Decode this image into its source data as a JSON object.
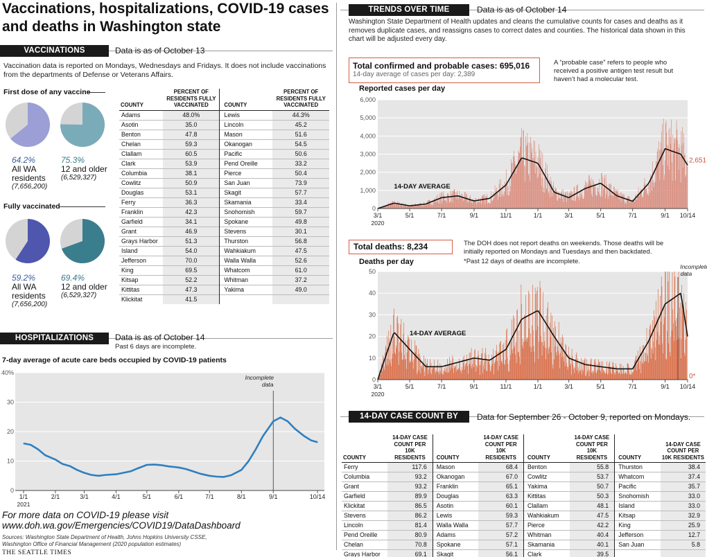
{
  "title": "Vaccinations, hospitalizations, COVID-19 cases and deaths in Washington state",
  "vaccinations": {
    "header": "VACCINATIONS",
    "asof": "Data is as of October 13",
    "note": "Vaccination data is reported on Mondays, Wednesdays and Fridays. It does not include vaccinations from the departments of Defense or Veterans Affairs.",
    "first_dose_label": "First dose of any vaccine",
    "fully_label": "Fully vaccinated",
    "first_dose": [
      {
        "pct": "64.2%",
        "value": 64.2,
        "group": "All WA residents",
        "pop": "(7,656,200)",
        "color": "#9b9fd6"
      },
      {
        "pct": "75.3%",
        "value": 75.3,
        "group": "12 and older",
        "pop": "(6,529,327)",
        "color": "#7aabb8"
      }
    ],
    "fully": [
      {
        "pct": "59.2%",
        "value": 59.2,
        "group": "All WA residents",
        "pop": "(7,656,200)",
        "color": "#4f56ad"
      },
      {
        "pct": "69.4%",
        "value": 69.4,
        "group": "12 and older",
        "pop": "(6,529,327)",
        "color": "#3a7d8d"
      }
    ],
    "table": {
      "col_county": "COUNTY",
      "col_pct": "PERCENT OF RESIDENTS FULLY VACCINATED",
      "left": [
        [
          "Adams",
          "48.0%"
        ],
        [
          "Asotin",
          "35.0"
        ],
        [
          "Benton",
          "47.8"
        ],
        [
          "Chelan",
          "59.3"
        ],
        [
          "Clallam",
          "60.5"
        ],
        [
          "Clark",
          "53.9"
        ],
        [
          "Columbia",
          "38.1"
        ],
        [
          "Cowlitz",
          "50.9"
        ],
        [
          "Douglas",
          "53.1"
        ],
        [
          "Ferry",
          "36.3"
        ],
        [
          "Franklin",
          "42.3"
        ],
        [
          "Garfield",
          "34.1"
        ],
        [
          "Grant",
          "46.9"
        ],
        [
          "Grays Harbor",
          "51.3"
        ],
        [
          "Island",
          "54.0"
        ],
        [
          "Jefferson",
          "70.0"
        ],
        [
          "King",
          "69.5"
        ],
        [
          "Kitsap",
          "52.2"
        ],
        [
          "Kittitas",
          "47.3"
        ],
        [
          "Klickitat",
          "41.5"
        ]
      ],
      "right": [
        [
          "Lewis",
          "44.3%"
        ],
        [
          "Lincoln",
          "45.2"
        ],
        [
          "Mason",
          "51.6"
        ],
        [
          "Okanogan",
          "54.5"
        ],
        [
          "Pacific",
          "50.6"
        ],
        [
          "Pend Oreille",
          "33.2"
        ],
        [
          "Pierce",
          "50.4"
        ],
        [
          "San Juan",
          "73.9"
        ],
        [
          "Skagit",
          "57.7"
        ],
        [
          "Skamania",
          "33.4"
        ],
        [
          "Snohomish",
          "59.7"
        ],
        [
          "Spokane",
          "49.8"
        ],
        [
          "Stevens",
          "30.1"
        ],
        [
          "Thurston",
          "56.8"
        ],
        [
          "Wahkiakum",
          "47.5"
        ],
        [
          "Walla Walla",
          "52.6"
        ],
        [
          "Whatcom",
          "61.0"
        ],
        [
          "Whitman",
          "37.2"
        ],
        [
          "Yakima",
          "49.0"
        ],
        [
          "",
          ""
        ]
      ]
    }
  },
  "hospitalizations": {
    "header": "HOSPITALIZATIONS",
    "asof": "Data is as of October 14",
    "note": "Past 6 days are incomplete.",
    "chart_title": "7-day average of acute care beds occupied by COVID-19 patients",
    "incomplete": "Incomplete data"
  },
  "footer": {
    "more_data": "For more data on COVID-19 please visit",
    "url": "www.doh.wa.gov/Emergencies/COVID19/DataDashboard",
    "sources": "Sources: Washington State Department of Health, Johns Hopkins University CSSE, Washington Office of Financial Management (2020 population estimates)",
    "credit": "THE SEATTLE TIMES"
  },
  "trends": {
    "header": "TRENDS OVER TIME",
    "asof": "Data is as of October 14",
    "note": "Washington State Department of Health updates and cleans the cumulative counts for cases and deaths as it removes duplicate cases, and reassigns cases to correct dates and counties. The historical data shown in this chart will be adjusted every day.",
    "cases_total": "Total confirmed and probable cases: 695,016",
    "cases_avg": "14-day average of cases per day: 2,389",
    "probable_note": "A “probable case” refers to people who received a positive antigen test result but haven’t had a molecular test.",
    "cases_title": "Reported cases per day",
    "cases_last": "2,651",
    "avg_label": "14-DAY AVERAGE",
    "deaths_total": "Total deaths: 8,234",
    "deaths_note": "The DOH does not report deaths on weekends. Those deaths will be initially reported on Mondays and Tuesdays and then backdated.",
    "deaths_note2": "*Past 12 days of deaths are incomplete.",
    "deaths_title": "Deaths per day",
    "deaths_last": "0*",
    "incomplete": "Incomplete data"
  },
  "county14": {
    "header": "14-DAY CASE COUNT BY COUNTY",
    "asof": "Data for September 26 - October 9, reported on Mondays.",
    "col_county": "COUNTY",
    "col_count": "14-DAY CASE COUNT PER 10K RESIDENTS",
    "columns": [
      [
        [
          "Ferry",
          "117.6"
        ],
        [
          "Columbia",
          "93.2"
        ],
        [
          "Grant",
          "93.2"
        ],
        [
          "Garfield",
          "89.9"
        ],
        [
          "Klickitat",
          "86.5"
        ],
        [
          "Stevens",
          "86.2"
        ],
        [
          "Lincoln",
          "81.4"
        ],
        [
          "Pend Oreille",
          "80.9"
        ],
        [
          "Chelan",
          "70.8"
        ],
        [
          "Grays Harbor",
          "69.1"
        ]
      ],
      [
        [
          "Mason",
          "68.4"
        ],
        [
          "Okanogan",
          "67.0"
        ],
        [
          "Franklin",
          "65.1"
        ],
        [
          "Douglas",
          "63.3"
        ],
        [
          "Asotin",
          "60.1"
        ],
        [
          "Lewis",
          "59.3"
        ],
        [
          "Walla Walla",
          "57.7"
        ],
        [
          "Adams",
          "57.2"
        ],
        [
          "Spokane",
          "57.1"
        ],
        [
          "Skagit",
          "56.1"
        ]
      ],
      [
        [
          "Benton",
          "55.8"
        ],
        [
          "Cowlitz",
          "53.7"
        ],
        [
          "Yakima",
          "50.7"
        ],
        [
          "Kittitas",
          "50.3"
        ],
        [
          "Clallam",
          "48.1"
        ],
        [
          "Wahkiakum",
          "47.5"
        ],
        [
          "Pierce",
          "42.2"
        ],
        [
          "Whitman",
          "40.4"
        ],
        [
          "Skamania",
          "40.1"
        ],
        [
          "Clark",
          "39.5"
        ]
      ],
      [
        [
          "Thurston",
          "38.4"
        ],
        [
          "Whatcom",
          "37.4"
        ],
        [
          "Pacific",
          "35.7"
        ],
        [
          "Snohomish",
          "33.0"
        ],
        [
          "Island",
          "33.0"
        ],
        [
          "Kitsap",
          "32.9"
        ],
        [
          "King",
          "25.9"
        ],
        [
          "Jefferson",
          "12.7"
        ],
        [
          "San Juan",
          "5.8"
        ],
        [
          "",
          ""
        ]
      ]
    ]
  },
  "chart_data": [
    {
      "type": "line",
      "title": "7-day average of acute care beds occupied by COVID-19 patients",
      "ylim": [
        0,
        40
      ],
      "yticks": [
        "0",
        "10",
        "20",
        "30",
        "40%"
      ],
      "xticks": [
        "1/1",
        "2/1",
        "3/1",
        "4/1",
        "5/1",
        "6/1",
        "7/1",
        "8/1",
        "9/1",
        "10/14"
      ],
      "xtick_sub": "2021",
      "x": [
        "1/1",
        "1/8",
        "1/15",
        "1/22",
        "2/1",
        "2/8",
        "2/15",
        "2/22",
        "3/1",
        "3/8",
        "3/15",
        "3/22",
        "4/1",
        "4/8",
        "4/15",
        "4/22",
        "5/1",
        "5/8",
        "5/15",
        "5/22",
        "6/1",
        "6/8",
        "6/15",
        "6/22",
        "7/1",
        "7/8",
        "7/15",
        "7/22",
        "8/1",
        "8/8",
        "8/15",
        "8/22",
        "9/1",
        "9/8",
        "9/15",
        "9/22",
        "10/1",
        "10/8",
        "10/14"
      ],
      "values": [
        16,
        15.5,
        14,
        12,
        10.5,
        9,
        8.3,
        7,
        6,
        5.3,
        5,
        5.3,
        5.5,
        6,
        6.5,
        7.5,
        8.7,
        8.8,
        8.6,
        8.2,
        7.8,
        7.3,
        6.5,
        5.7,
        5,
        4.7,
        4.6,
        5.2,
        7,
        10,
        14,
        18.5,
        23.5,
        24.8,
        23.5,
        21,
        18.5,
        17,
        16.4
      ]
    },
    {
      "type": "bar",
      "title": "Reported cases per day",
      "ylim": [
        0,
        6000
      ],
      "yticks": [
        "0",
        "1,000",
        "2,000",
        "3,000",
        "4,000",
        "5,000",
        "6,000"
      ],
      "xticks": [
        "3/1",
        "5/1",
        "7/1",
        "9/1",
        "11/1",
        "1/1",
        "3/1",
        "5/1",
        "7/1",
        "9/1",
        "10/14"
      ],
      "xtick_sub": "2020",
      "avg_x": [
        "3/1",
        "4/1",
        "5/1",
        "6/1",
        "7/1",
        "8/1",
        "9/1",
        "10/1",
        "11/1",
        "12/1",
        "1/1",
        "2/1",
        "3/1",
        "4/1",
        "5/1",
        "6/1",
        "7/1",
        "8/1",
        "9/1",
        "10/1",
        "10/14"
      ],
      "avg_values": [
        0,
        300,
        150,
        250,
        600,
        700,
        420,
        560,
        1300,
        2800,
        2500,
        900,
        600,
        1100,
        1400,
        700,
        400,
        1400,
        3300,
        3000,
        2389
      ],
      "last_value": 2651
    },
    {
      "type": "bar",
      "title": "Deaths per day",
      "ylim": [
        0,
        50
      ],
      "yticks": [
        "0",
        "10",
        "20",
        "30",
        "40",
        "50"
      ],
      "xticks": [
        "3/1",
        "5/1",
        "7/1",
        "9/1",
        "11/1",
        "1/1",
        "3/1",
        "5/1",
        "7/1",
        "9/1",
        "10/14"
      ],
      "xtick_sub": "2020",
      "avg_x": [
        "3/1",
        "3/15",
        "4/1",
        "5/1",
        "6/1",
        "7/1",
        "8/1",
        "9/1",
        "10/1",
        "11/1",
        "12/1",
        "1/1",
        "2/1",
        "3/1",
        "4/1",
        "5/1",
        "6/1",
        "7/1",
        "8/1",
        "9/1",
        "10/1",
        "10/14"
      ],
      "avg_values": [
        0,
        10,
        22,
        14,
        6,
        6,
        8,
        10,
        9,
        14,
        28,
        32,
        20,
        10,
        7,
        6,
        5,
        5,
        18,
        35,
        40,
        20
      ],
      "last_value": 0
    }
  ]
}
